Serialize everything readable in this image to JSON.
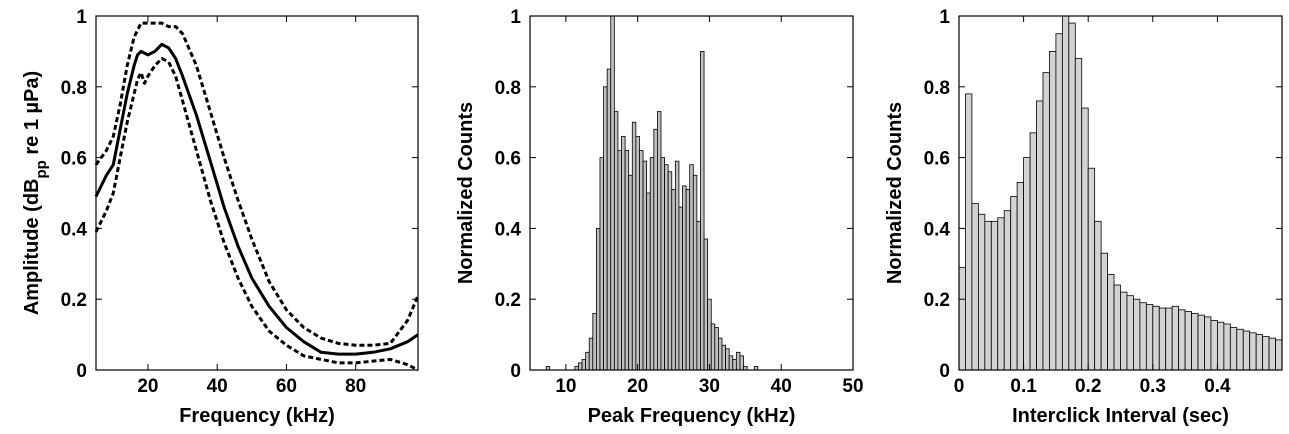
{
  "chart_data": [
    {
      "type": "line",
      "xlabel": "Frequency (kHz)",
      "ylabel_parts": {
        "pre": "Amplitude (dB",
        "sub": "pp",
        "mid": " re 1 ",
        "mu": "µ",
        "post": "Pa)"
      },
      "xlim": [
        5,
        98
      ],
      "ylim": [
        0,
        1
      ],
      "xticks": [
        "20",
        "40",
        "60",
        "80"
      ],
      "xtick_values": [
        20,
        40,
        60,
        80
      ],
      "yticks": [
        "0",
        "0.2",
        "0.4",
        "0.6",
        "0.8",
        "1"
      ],
      "ytick_values": [
        0,
        0.2,
        0.4,
        0.6,
        0.8,
        1
      ],
      "grid": false,
      "series": [
        {
          "style": "solid",
          "x": [
            5,
            8,
            10,
            12,
            14,
            16,
            17,
            18,
            20,
            22,
            24,
            26,
            28,
            30,
            34,
            38,
            42,
            46,
            50,
            55,
            60,
            65,
            70,
            75,
            80,
            85,
            90,
            95,
            98
          ],
          "y": [
            0.49,
            0.55,
            0.58,
            0.68,
            0.78,
            0.86,
            0.89,
            0.9,
            0.89,
            0.9,
            0.92,
            0.91,
            0.88,
            0.83,
            0.72,
            0.59,
            0.46,
            0.35,
            0.26,
            0.18,
            0.12,
            0.08,
            0.05,
            0.045,
            0.045,
            0.05,
            0.06,
            0.08,
            0.1
          ]
        },
        {
          "style": "dashed",
          "x": [
            5,
            8,
            10,
            12,
            14,
            16,
            18,
            20,
            22,
            24,
            26,
            28,
            30,
            34,
            38,
            42,
            46,
            50,
            55,
            60,
            65,
            70,
            75,
            80,
            85,
            90,
            95,
            98
          ],
          "y": [
            0.58,
            0.62,
            0.66,
            0.75,
            0.86,
            0.94,
            0.98,
            0.98,
            0.98,
            0.98,
            0.97,
            0.97,
            0.95,
            0.86,
            0.73,
            0.6,
            0.48,
            0.37,
            0.25,
            0.17,
            0.12,
            0.09,
            0.075,
            0.07,
            0.07,
            0.075,
            0.14,
            0.21
          ]
        },
        {
          "style": "dashed",
          "x": [
            5,
            8,
            10,
            12,
            14,
            16,
            17,
            18,
            19,
            20,
            22,
            24,
            26,
            28,
            30,
            34,
            38,
            42,
            46,
            50,
            55,
            60,
            65,
            70,
            75,
            80,
            85,
            90,
            95,
            98
          ],
          "y": [
            0.39,
            0.45,
            0.5,
            0.6,
            0.7,
            0.78,
            0.82,
            0.84,
            0.81,
            0.83,
            0.86,
            0.88,
            0.87,
            0.83,
            0.76,
            0.62,
            0.48,
            0.36,
            0.26,
            0.18,
            0.11,
            0.07,
            0.04,
            0.03,
            0.02,
            0.02,
            0.025,
            0.03,
            0.015,
            0.0
          ]
        }
      ]
    },
    {
      "type": "bar",
      "xlabel": "Peak Frequency (kHz)",
      "ylabel": "Normalized Counts",
      "xlim": [
        5,
        50
      ],
      "ylim": [
        0,
        1
      ],
      "xticks": [
        "10",
        "20",
        "30",
        "40",
        "50"
      ],
      "xtick_values": [
        10,
        20,
        30,
        40,
        50
      ],
      "yticks": [
        "0",
        "0.2",
        "0.4",
        "0.6",
        "0.8",
        "1"
      ],
      "ytick_values": [
        0,
        0.2,
        0.4,
        0.6,
        0.8,
        1
      ],
      "grid": false,
      "bar_width": 0.5,
      "bar_fill": "#c0c0c0",
      "x": [
        7.5,
        11.5,
        12.0,
        12.5,
        13.0,
        13.5,
        14.0,
        14.5,
        15.0,
        15.5,
        16.0,
        16.5,
        17.0,
        17.5,
        18.0,
        18.5,
        19.0,
        19.5,
        20.0,
        20.5,
        21.0,
        21.5,
        22.0,
        22.5,
        23.0,
        23.5,
        24.0,
        24.5,
        25.0,
        25.5,
        26.0,
        26.5,
        27.0,
        27.5,
        28.0,
        28.5,
        29.0,
        29.5,
        30.0,
        30.5,
        31.0,
        31.5,
        32.0,
        32.5,
        33.0,
        33.5,
        34.0,
        34.5,
        35.0,
        36.5
      ],
      "values": [
        0.01,
        0.01,
        0.02,
        0.03,
        0.05,
        0.09,
        0.16,
        0.4,
        0.6,
        0.8,
        0.85,
        1.0,
        0.73,
        0.62,
        0.66,
        0.62,
        0.55,
        0.7,
        0.66,
        0.62,
        0.59,
        0.5,
        0.6,
        0.68,
        0.73,
        0.6,
        0.58,
        0.56,
        0.51,
        0.59,
        0.46,
        0.52,
        0.51,
        0.58,
        0.55,
        0.42,
        0.9,
        0.37,
        0.2,
        0.13,
        0.12,
        0.09,
        0.07,
        0.06,
        0.04,
        0.03,
        0.05,
        0.04,
        0.01,
        0.01
      ]
    },
    {
      "type": "bar",
      "xlabel": "Interclick Interval (sec)",
      "ylabel": "Normalized Counts",
      "xlim": [
        0,
        0.5
      ],
      "ylim": [
        0,
        1
      ],
      "xticks": [
        "0",
        "0.1",
        "0.2",
        "0.3",
        "0.4"
      ],
      "xtick_values": [
        0,
        0.1,
        0.2,
        0.3,
        0.4
      ],
      "yticks": [
        "0",
        "0.2",
        "0.4",
        "0.6",
        "0.8",
        "1"
      ],
      "ytick_values": [
        0,
        0.2,
        0.4,
        0.6,
        0.8,
        1
      ],
      "grid": false,
      "bar_width": 0.01,
      "bar_fill": "#d3d3d3",
      "x": [
        0.005,
        0.015,
        0.025,
        0.035,
        0.045,
        0.055,
        0.065,
        0.075,
        0.085,
        0.095,
        0.105,
        0.115,
        0.125,
        0.135,
        0.145,
        0.155,
        0.165,
        0.175,
        0.185,
        0.195,
        0.205,
        0.215,
        0.225,
        0.235,
        0.245,
        0.255,
        0.265,
        0.275,
        0.285,
        0.295,
        0.305,
        0.315,
        0.325,
        0.335,
        0.345,
        0.355,
        0.365,
        0.375,
        0.385,
        0.395,
        0.405,
        0.415,
        0.425,
        0.435,
        0.445,
        0.455,
        0.465,
        0.475,
        0.485,
        0.495
      ],
      "values": [
        0.29,
        0.78,
        0.47,
        0.44,
        0.42,
        0.42,
        0.43,
        0.45,
        0.49,
        0.53,
        0.6,
        0.67,
        0.76,
        0.84,
        0.9,
        0.95,
        1.0,
        0.98,
        0.88,
        0.74,
        0.57,
        0.42,
        0.33,
        0.27,
        0.24,
        0.22,
        0.21,
        0.2,
        0.19,
        0.185,
        0.18,
        0.175,
        0.175,
        0.18,
        0.17,
        0.165,
        0.16,
        0.155,
        0.15,
        0.14,
        0.135,
        0.13,
        0.12,
        0.115,
        0.11,
        0.105,
        0.1,
        0.095,
        0.09,
        0.085
      ]
    }
  ]
}
